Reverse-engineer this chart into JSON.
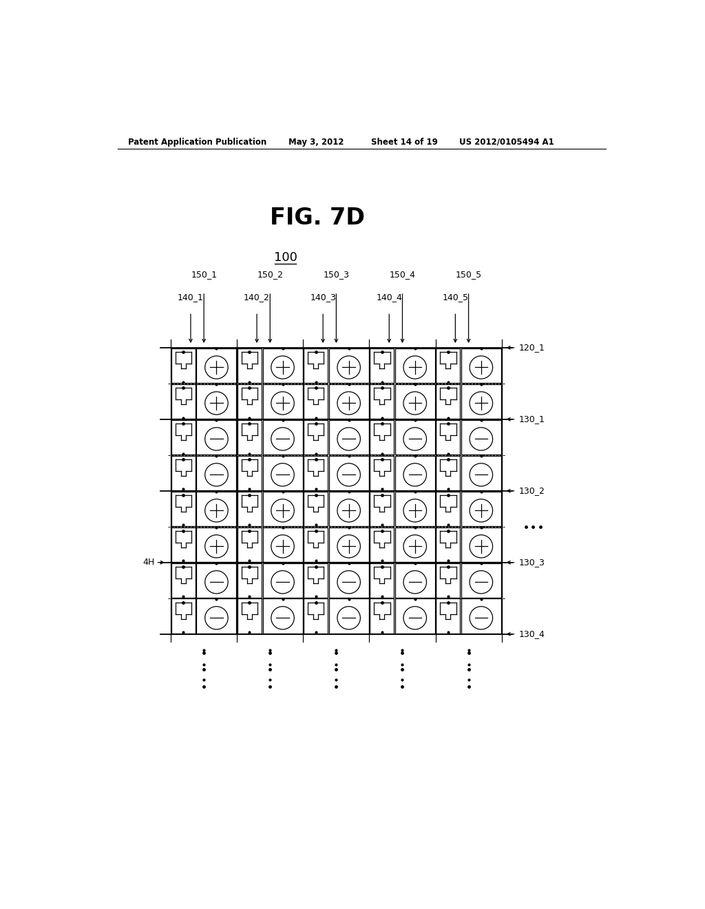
{
  "title": "FIG. 7D",
  "patent_header": "Patent Application Publication",
  "patent_date": "May 3, 2012",
  "patent_sheet": "Sheet 14 of 19",
  "patent_number": "US 2012/0105494 A1",
  "label_100": "100",
  "col_labels_150": [
    "150_1",
    "150_2",
    "150_3",
    "150_4",
    "150_5"
  ],
  "col_labels_140": [
    "140_1",
    "140_2",
    "140_3",
    "140_4",
    "140_5"
  ],
  "row_labels_right": [
    "120_1",
    "130_1",
    "130_2",
    "130_3",
    "130_4"
  ],
  "label_4H": "4H",
  "bg_color": "#ffffff",
  "line_color": "#000000"
}
